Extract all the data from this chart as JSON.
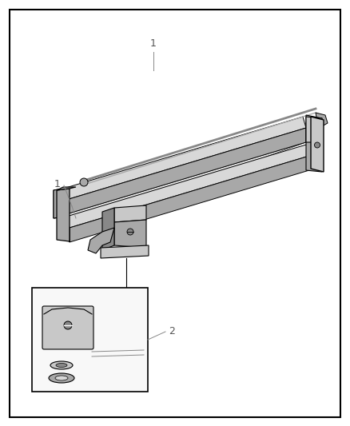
{
  "background_color": "#ffffff",
  "line_color": "#000000",
  "gray1": "#c8c8c8",
  "gray2": "#a8a8a8",
  "gray3": "#888888",
  "gray4": "#d8d8d8",
  "gray5": "#e8e8e8",
  "label1": "1",
  "label2": "2",
  "figsize": [
    4.38,
    5.33
  ],
  "dpi": 100
}
